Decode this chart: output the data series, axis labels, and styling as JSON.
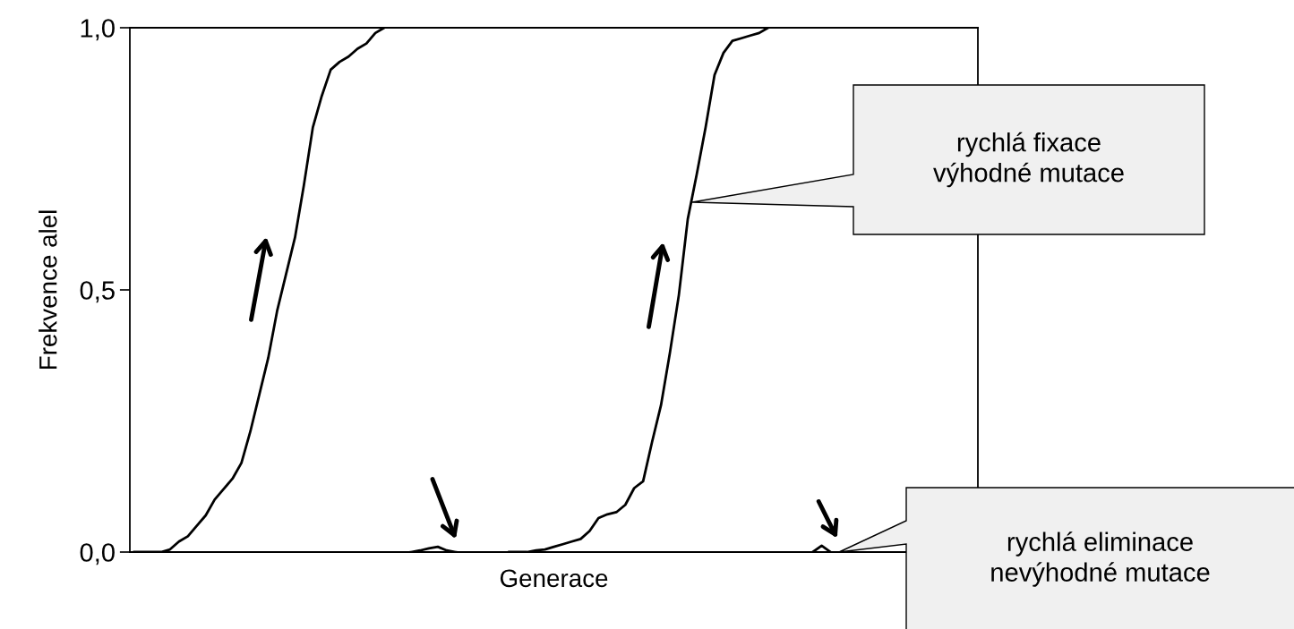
{
  "chart_data": {
    "type": "line",
    "xlabel": "Generace",
    "ylabel": "Frekvence alel",
    "categories": [
      null,
      null,
      null,
      null,
      null,
      null,
      null,
      null,
      null,
      null,
      null,
      null,
      null,
      null,
      null,
      null,
      null,
      null,
      null,
      null,
      null,
      null,
      null,
      null,
      null,
      null,
      null,
      null,
      null,
      null,
      null,
      null,
      null,
      null,
      null,
      null,
      null,
      null,
      null,
      null,
      null,
      null,
      null,
      null,
      null,
      null,
      null,
      null,
      null,
      null,
      null,
      null,
      null,
      null,
      null,
      null,
      null,
      null,
      null,
      null,
      null,
      null,
      null,
      null,
      null,
      null,
      null,
      null,
      null,
      null,
      null,
      null,
      null,
      null,
      null,
      null,
      null,
      null,
      null,
      null,
      null,
      null,
      null,
      null,
      null,
      null,
      null,
      null,
      null,
      null,
      null,
      null,
      null,
      null,
      null
    ],
    "series": [
      {
        "color": "#000000",
        "values": [
          0.0,
          0.0,
          0.0,
          0.0,
          0.005,
          0.02,
          0.03,
          0.05,
          0.07,
          0.1,
          0.12,
          0.14,
          0.17,
          0.23,
          0.3,
          0.37,
          0.46,
          0.53,
          0.6,
          0.7,
          0.81,
          0.87,
          0.92,
          0.935,
          0.945,
          0.96,
          0.97,
          0.99,
          1.0,
          null,
          null,
          0.0,
          0.003,
          0.007,
          0.01,
          0.003,
          0.0,
          null,
          null,
          null,
          null,
          null,
          0.0,
          0.0,
          0.0,
          0.003,
          0.005,
          0.01,
          0.015,
          0.02,
          0.025,
          0.04,
          0.065,
          0.072,
          0.076,
          0.09,
          0.122,
          0.135,
          0.21,
          0.28,
          0.38,
          0.49,
          0.635,
          0.72,
          0.81,
          0.91,
          0.952,
          0.975,
          0.98,
          0.985,
          0.99,
          1.0,
          null,
          null,
          null,
          null,
          0.0,
          0.012,
          0.0,
          null,
          null,
          null,
          null,
          null,
          null,
          null,
          null,
          null,
          null,
          null,
          null,
          null,
          null,
          null,
          null
        ]
      }
    ],
    "ylim": [
      0,
      1
    ],
    "yticks": [
      {
        "value": 0,
        "label": "0,0"
      },
      {
        "value": 0.5,
        "label": "0,5"
      },
      {
        "value": 1,
        "label": "1,0"
      }
    ],
    "grid": false,
    "legend": false,
    "marker": "none",
    "line_style": "solid",
    "annotations": [
      "rychlá fixace\nvýhodné mutace",
      "rychlá eliminace\nnevýhodné mutace"
    ]
  }
}
